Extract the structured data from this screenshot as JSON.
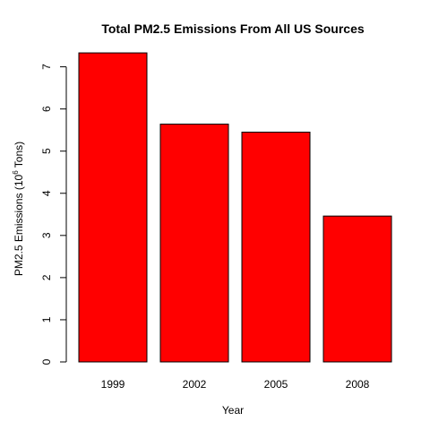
{
  "chart_data": {
    "type": "bar",
    "title": "Total PM2.5 Emissions From All US Sources",
    "xlabel": "Year",
    "ylabel_prefix": "PM2.5 Emissions  (10",
    "ylabel_exponent": "6",
    "ylabel_suffix": " Tons)",
    "categories": [
      "1999",
      "2002",
      "2005",
      "2008"
    ],
    "values": [
      7.33,
      5.64,
      5.45,
      3.46
    ],
    "ylim": [
      0,
      7
    ],
    "yticks": [
      "0",
      "1",
      "2",
      "3",
      "4",
      "5",
      "6",
      "7"
    ],
    "bar_color": "#ff0000",
    "grid": false
  }
}
